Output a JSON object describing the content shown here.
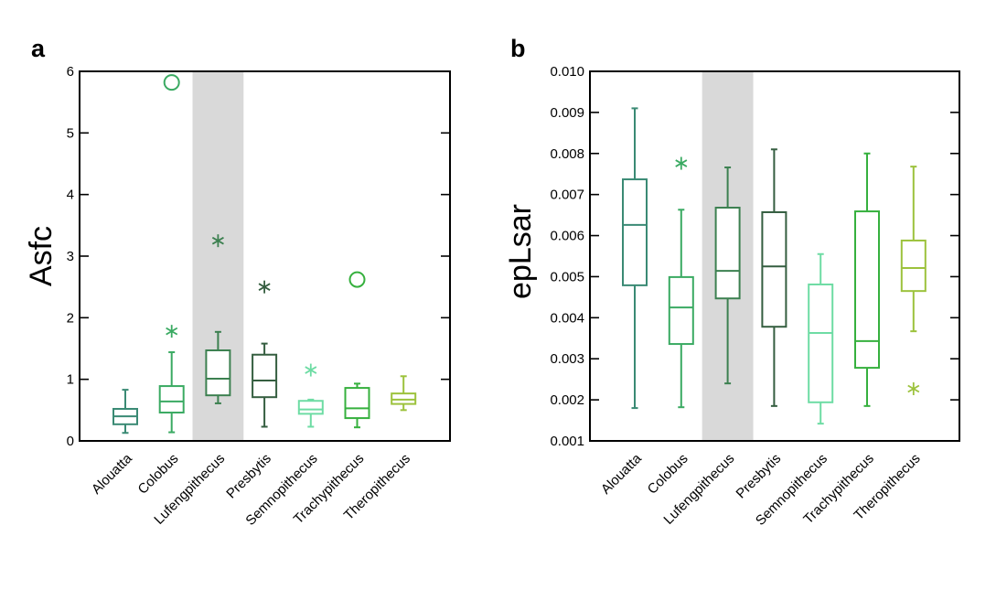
{
  "chart_data": [
    {
      "type": "box",
      "panel_label": "a",
      "title": "",
      "xlabel": "",
      "ylabel": "Asfc",
      "ylim": [
        0,
        6
      ],
      "yticks": [
        0,
        1,
        2,
        3,
        4,
        5,
        6
      ],
      "ytick_labels": [
        "0",
        "1",
        "2",
        "3",
        "4",
        "5",
        "6"
      ],
      "grid": false,
      "highlighted_category": "Lufengpithecus",
      "highlight_color": "#d9d9d9",
      "categories": [
        "Alouatta",
        "Colobus",
        "Lufengpithecus",
        "Presbytis",
        "Semnopithecus",
        "Trachypithecus",
        "Theropithecus"
      ],
      "boxes": [
        {
          "category": "Alouatta",
          "color": "#3a8a74",
          "whisker_low": 0.13,
          "q1": 0.27,
          "median": 0.4,
          "q3": 0.52,
          "whisker_high": 0.83,
          "outliers": [],
          "extremes": []
        },
        {
          "category": "Colobus",
          "color": "#3aaa62",
          "whisker_low": 0.14,
          "q1": 0.46,
          "median": 0.64,
          "q3": 0.89,
          "whisker_high": 1.44,
          "outliers": [
            1.78
          ],
          "extremes": [
            5.82
          ]
        },
        {
          "category": "Lufengpithecus",
          "color": "#3c8050",
          "whisker_low": 0.61,
          "q1": 0.74,
          "median": 1.01,
          "q3": 1.47,
          "whisker_high": 1.77,
          "outliers": [
            3.25
          ],
          "extremes": []
        },
        {
          "category": "Presbytis",
          "color": "#355e40",
          "whisker_low": 0.23,
          "q1": 0.71,
          "median": 0.98,
          "q3": 1.4,
          "whisker_high": 1.58,
          "outliers": [
            2.5
          ],
          "extremes": []
        },
        {
          "category": "Semnopithecus",
          "color": "#6edca4",
          "whisker_low": 0.23,
          "q1": 0.44,
          "median": 0.51,
          "q3": 0.65,
          "whisker_high": 0.67,
          "outliers": [
            1.15
          ],
          "extremes": []
        },
        {
          "category": "Trachypithecus",
          "color": "#36b03e",
          "whisker_low": 0.22,
          "q1": 0.37,
          "median": 0.53,
          "q3": 0.86,
          "whisker_high": 0.93,
          "outliers": [],
          "extremes": [
            2.62
          ]
        },
        {
          "category": "Theropithecus",
          "color": "#9cc23c",
          "whisker_low": 0.5,
          "q1": 0.6,
          "median": 0.67,
          "q3": 0.77,
          "whisker_high": 1.05,
          "outliers": [],
          "extremes": []
        }
      ]
    },
    {
      "type": "box",
      "panel_label": "b",
      "title": "",
      "xlabel": "",
      "ylabel": "epLsar",
      "ylim": [
        0.001,
        0.01
      ],
      "yticks": [
        0.001,
        0.002,
        0.003,
        0.004,
        0.005,
        0.006,
        0.007,
        0.008,
        0.009,
        0.01
      ],
      "ytick_labels": [
        "0.001",
        "0.002",
        "0.003",
        "0.004",
        "0.005",
        "0.006",
        "0.007",
        "0.008",
        "0.009",
        "0.010"
      ],
      "grid": false,
      "highlighted_category": "Lufengpithecus",
      "highlight_color": "#d9d9d9",
      "categories": [
        "Alouatta",
        "Colobus",
        "Lufengpithecus",
        "Presbytis",
        "Semnopithecus",
        "Trachypithecus",
        "Theropithecus"
      ],
      "boxes": [
        {
          "category": "Alouatta",
          "color": "#3a8a74",
          "whisker_low": 0.0018,
          "q1": 0.00479,
          "median": 0.00626,
          "q3": 0.00737,
          "whisker_high": 0.0091,
          "outliers": [],
          "extremes": []
        },
        {
          "category": "Colobus",
          "color": "#3aaa62",
          "whisker_low": 0.00182,
          "q1": 0.00336,
          "median": 0.00425,
          "q3": 0.00499,
          "whisker_high": 0.00663,
          "outliers": [
            0.00776
          ],
          "extremes": []
        },
        {
          "category": "Lufengpithecus",
          "color": "#3c8050",
          "whisker_low": 0.0024,
          "q1": 0.00447,
          "median": 0.00514,
          "q3": 0.00668,
          "whisker_high": 0.00766,
          "outliers": [],
          "extremes": []
        },
        {
          "category": "Presbytis",
          "color": "#355e40",
          "whisker_low": 0.00185,
          "q1": 0.00378,
          "median": 0.00525,
          "q3": 0.00657,
          "whisker_high": 0.0081,
          "outliers": [],
          "extremes": []
        },
        {
          "category": "Semnopithecus",
          "color": "#6edca4",
          "whisker_low": 0.00142,
          "q1": 0.00194,
          "median": 0.00363,
          "q3": 0.00481,
          "whisker_high": 0.00555,
          "outliers": [],
          "extremes": []
        },
        {
          "category": "Trachypithecus",
          "color": "#36b03e",
          "whisker_low": 0.00185,
          "q1": 0.00278,
          "median": 0.00343,
          "q3": 0.00659,
          "whisker_high": 0.008,
          "outliers": [],
          "extremes": []
        },
        {
          "category": "Theropithecus",
          "color": "#9cc23c",
          "whisker_low": 0.00367,
          "q1": 0.00465,
          "median": 0.00521,
          "q3": 0.00588,
          "whisker_high": 0.00768,
          "outliers": [
            0.00227
          ],
          "extremes": []
        }
      ]
    }
  ]
}
